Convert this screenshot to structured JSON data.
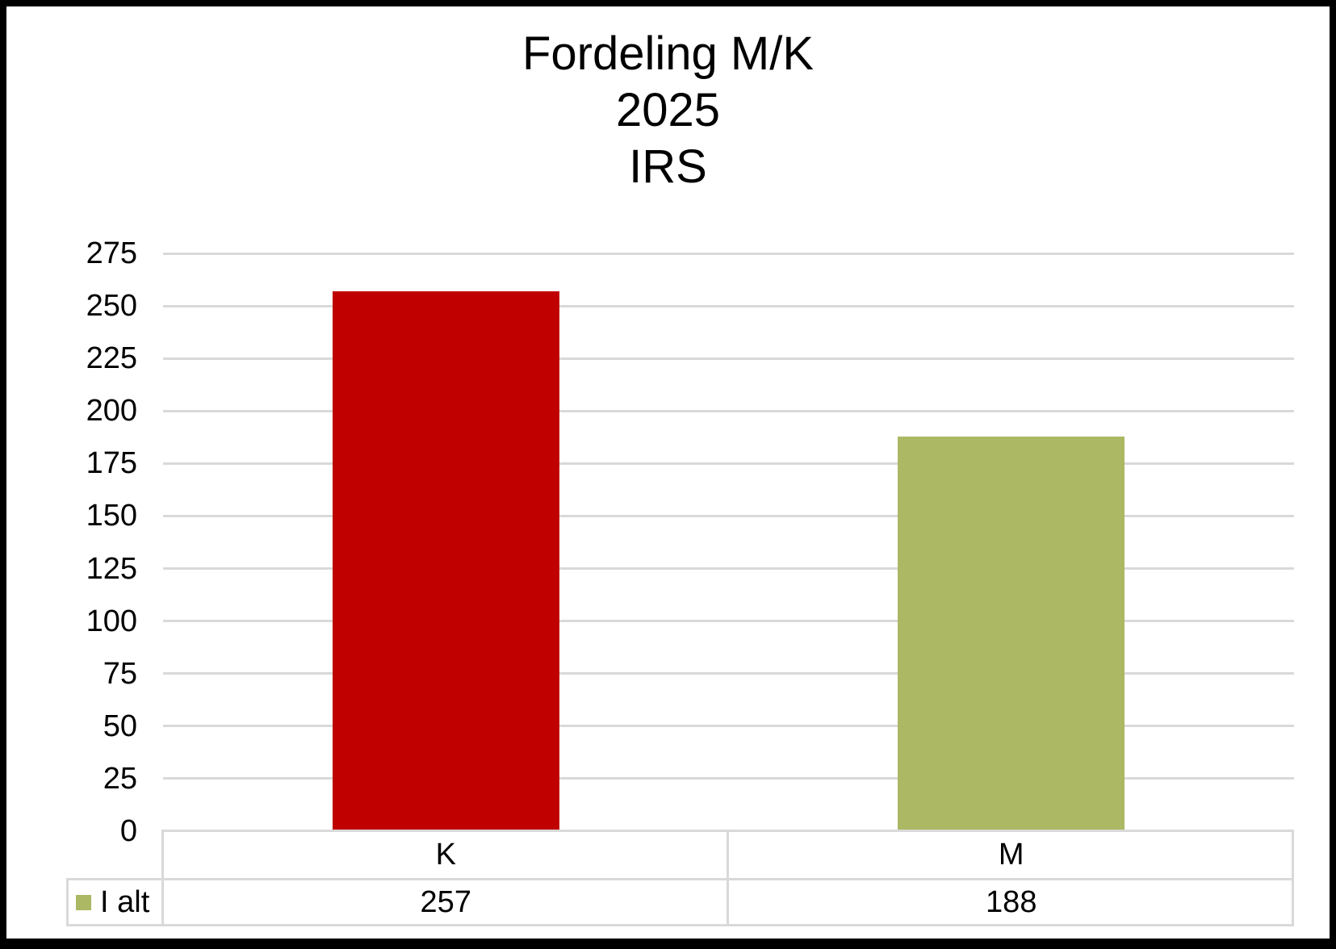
{
  "chart_data": {
    "type": "bar",
    "title": "Fordeling M/K 2025 IRS",
    "title_lines": [
      "Fordeling M/K",
      "2025",
      "IRS"
    ],
    "categories": [
      "K",
      "M"
    ],
    "series": [
      {
        "name": "I alt",
        "values": [
          257,
          188
        ]
      }
    ],
    "bar_colors": [
      "#c00000",
      "#acb864"
    ],
    "xlabel": "",
    "ylabel": "",
    "ylim": [
      0,
      275
    ],
    "ytick_step": 25,
    "yticks": [
      0,
      25,
      50,
      75,
      100,
      125,
      150,
      175,
      200,
      225,
      250,
      275
    ],
    "grid": true,
    "gridline_color": "#d9d9d9",
    "legend_position": "data-table-left",
    "legend": [
      {
        "label": "I alt",
        "color": "#acb864"
      }
    ],
    "data_table": {
      "row_header": "I alt",
      "columns": [
        "K",
        "M"
      ],
      "values": [
        "257",
        "188"
      ]
    }
  },
  "colors": {
    "frame": "#000000",
    "background": "#ffffff",
    "text": "#000000",
    "grid": "#d9d9d9"
  }
}
